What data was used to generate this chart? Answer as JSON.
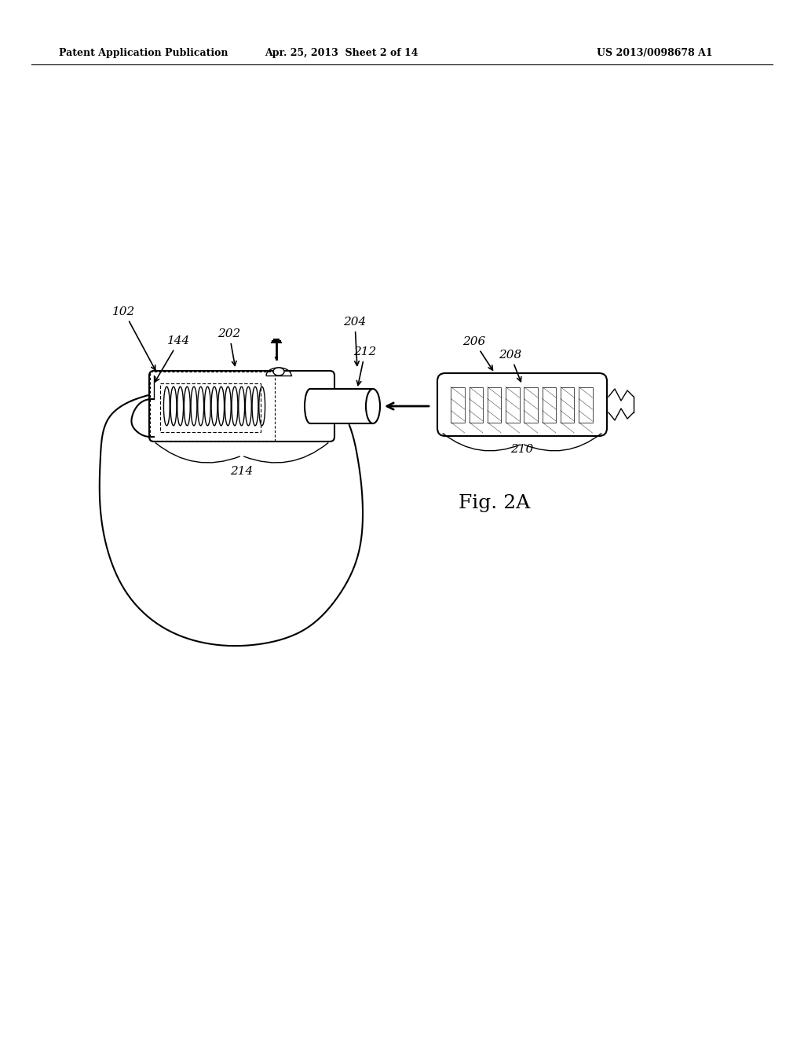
{
  "background_color": "#ffffff",
  "header_left": "Patent Application Publication",
  "header_center": "Apr. 25, 2013  Sheet 2 of 14",
  "header_right": "US 2013/0098678 A1",
  "fig_label": "Fig. 2A",
  "ann_fontsize": 11,
  "fig_label_fontsize": 18
}
